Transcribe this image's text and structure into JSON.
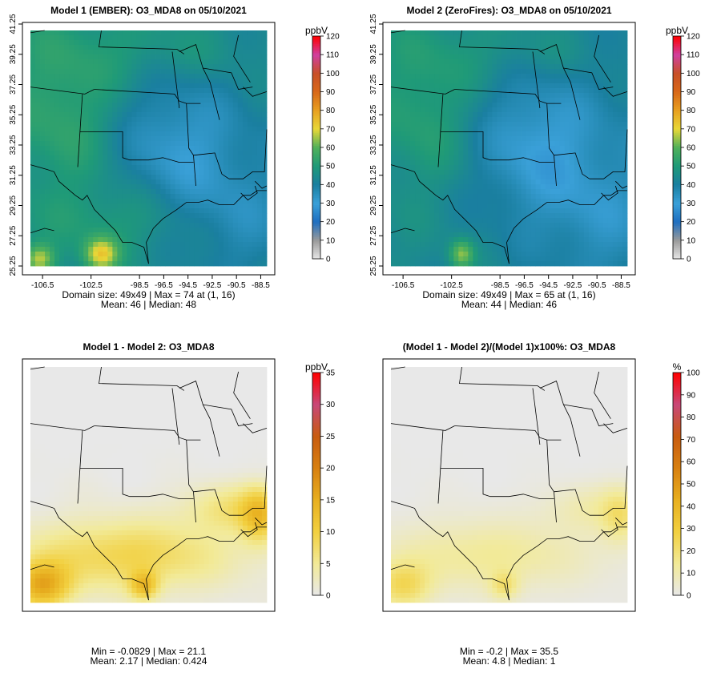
{
  "chart_data": [
    {
      "type": "heatmap",
      "title": "Model 1 (EMBER): O3_MDA8 on 05/10/2021",
      "colorbar_label": "ppbV",
      "colorbar_ticks": [
        0,
        10,
        20,
        30,
        40,
        50,
        60,
        70,
        80,
        90,
        100,
        110,
        120
      ],
      "colorbar_range": [
        0,
        120
      ],
      "x_ticks": [
        "-106.5",
        "-102.5",
        "-98.5",
        "-96.5",
        "-94.5",
        "-92.5",
        "-90.5",
        "-88.5"
      ],
      "x_tick_values": [
        -106.5,
        -102.5,
        -98.5,
        -96.5,
        -94.5,
        -92.5,
        -90.5,
        -88.5
      ],
      "y_ticks": [
        "25.25",
        "27.25",
        "29.25",
        "31.25",
        "33.25",
        "35.25",
        "37.25",
        "39.25",
        "41.25"
      ],
      "y_tick_values": [
        25.25,
        27.25,
        29.25,
        31.25,
        33.25,
        35.25,
        37.25,
        39.25,
        41.25
      ],
      "stats_line1": "Domain size: 49x49 | Max = 74 at (1, 16)",
      "stats_line2": "Mean: 46 |  Median: 48",
      "field": "abs1"
    },
    {
      "type": "heatmap",
      "title": "Model 2 (ZeroFires): O3_MDA8 on 05/10/2021",
      "colorbar_label": "ppbV",
      "colorbar_ticks": [
        0,
        10,
        20,
        30,
        40,
        50,
        60,
        70,
        80,
        90,
        100,
        110,
        120
      ],
      "colorbar_range": [
        0,
        120
      ],
      "x_ticks": [
        "-106.5",
        "-102.5",
        "-98.5",
        "-96.5",
        "-94.5",
        "-92.5",
        "-90.5",
        "-88.5"
      ],
      "x_tick_values": [
        -106.5,
        -102.5,
        -98.5,
        -96.5,
        -94.5,
        -92.5,
        -90.5,
        -88.5
      ],
      "y_ticks": [
        "25.25",
        "27.25",
        "29.25",
        "31.25",
        "33.25",
        "35.25",
        "37.25",
        "39.25",
        "41.25"
      ],
      "y_tick_values": [
        25.25,
        27.25,
        29.25,
        31.25,
        33.25,
        35.25,
        37.25,
        39.25,
        41.25
      ],
      "stats_line1": "Domain size: 49x49 | Max = 65 at (1, 16)",
      "stats_line2": "Mean: 44 |  Median: 46",
      "field": "abs2"
    },
    {
      "type": "heatmap",
      "title": "Model 1 - Model 2: O3_MDA8",
      "colorbar_label": "ppbV",
      "colorbar_ticks": [
        0,
        5,
        10,
        15,
        20,
        25,
        30,
        35
      ],
      "colorbar_range": [
        0,
        35
      ],
      "x_ticks": [],
      "y_ticks": [],
      "stats_line1": "Min = -0.0829 | Max = 21.1",
      "stats_line2": "Mean: 2.17 |  Median: 0.424",
      "field": "diff"
    },
    {
      "type": "heatmap",
      "title": "(Model 1 - Model 2)/(Model 1)x100%: O3_MDA8",
      "colorbar_label": "%",
      "colorbar_ticks": [
        0,
        10,
        20,
        30,
        40,
        50,
        60,
        70,
        80,
        90,
        100
      ],
      "colorbar_range": [
        0,
        100
      ],
      "x_ticks": [],
      "y_ticks": [],
      "stats_line1": "Min = -0.2 | Max = 35.5",
      "stats_line2": "Mean: 4.8 |  Median: 1",
      "field": "pct"
    }
  ],
  "colors": {
    "abs_scale": [
      "#e8e8e8",
      "#9a9a9a",
      "#1f6fc0",
      "#3aa0d8",
      "#1a7fa0",
      "#1f9a78",
      "#4fb05a",
      "#e8d838",
      "#e8a020",
      "#d86818",
      "#c85028",
      "#d040a0",
      "#ff0000"
    ],
    "diff_scale": [
      "#e8e8e8",
      "#f2ea98",
      "#f2d040",
      "#e8b020",
      "#d88010",
      "#c85c10",
      "#c84878",
      "#ff0000"
    ],
    "map_lines": "#000000"
  }
}
